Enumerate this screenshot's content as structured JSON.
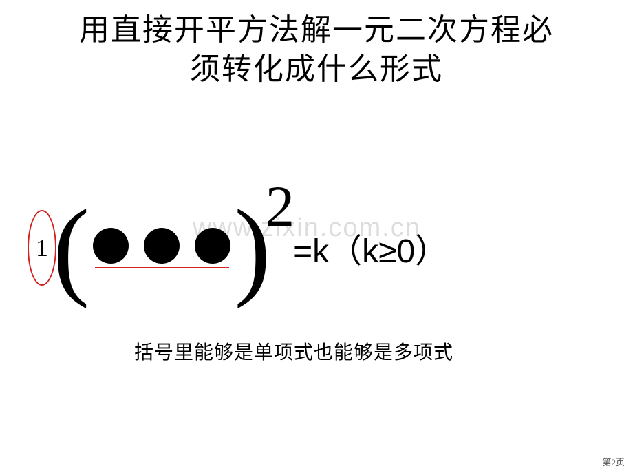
{
  "title": {
    "line1": "用直接开平方法解一元二次方程必",
    "line2": "须转化成什么形式"
  },
  "watermark": "www.zixin.com.cn",
  "formula": {
    "coefficient": "1",
    "left_paren": "(",
    "right_paren": ")",
    "exponent": "2",
    "rhs": "=k（k≥0）"
  },
  "caption": "括号里能够是单项式也能够是多项式",
  "page_number": "第2页",
  "colors": {
    "ellipse_border": "#d32020",
    "underline": "#d32020",
    "dot_fill": "#000000",
    "watermark_text": "#dddddd",
    "background": "#ffffff"
  },
  "shapes": {
    "dot_diameter": 52,
    "dot_gap": 22,
    "ellipse_width": 42,
    "ellipse_height": 110
  }
}
